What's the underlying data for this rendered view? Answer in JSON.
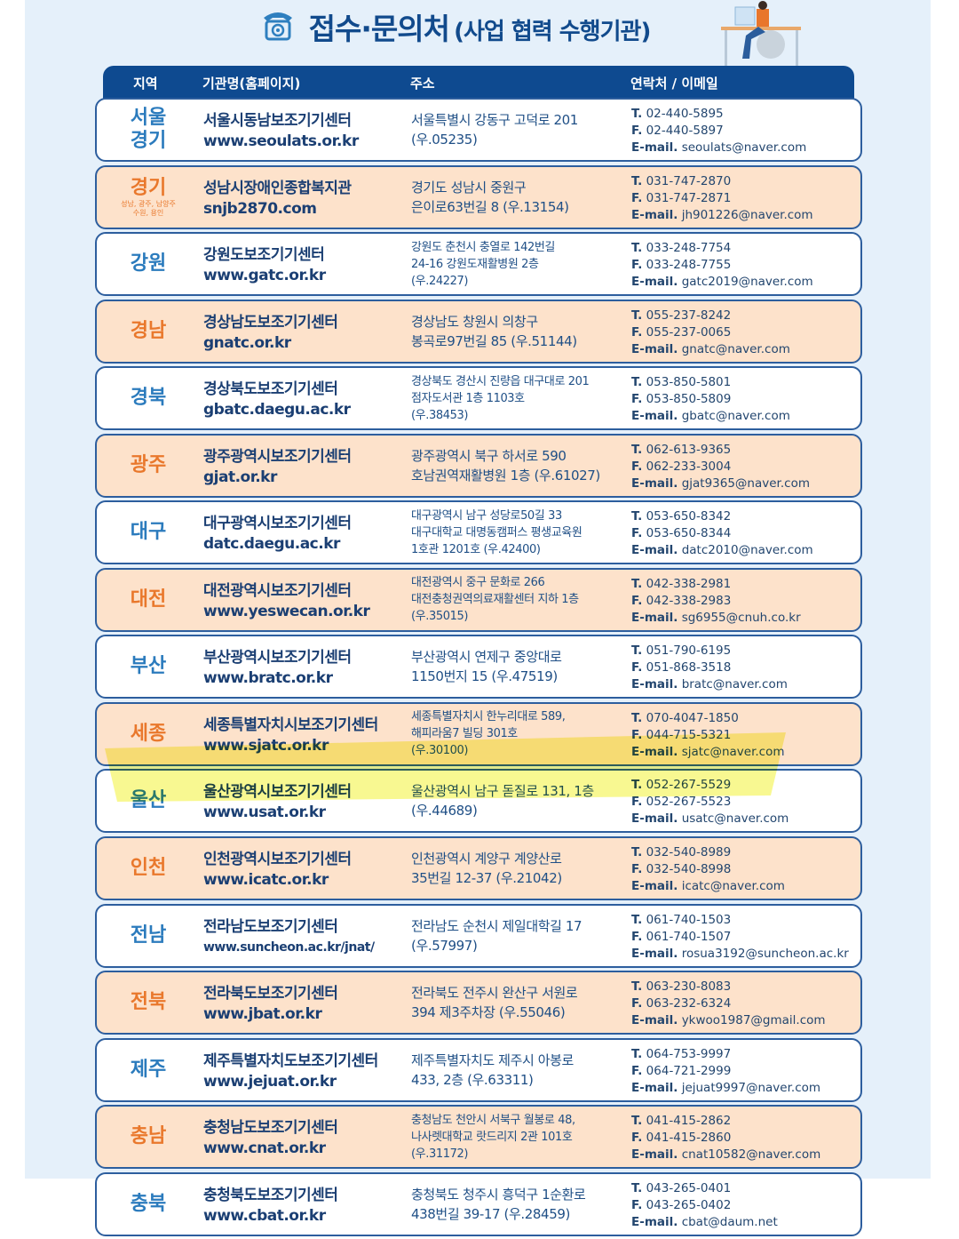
{
  "title": {
    "main": "접수·문의처",
    "sub": "(사업 협력 수행기관)",
    "icon": "telephone-icon"
  },
  "header": {
    "region": "지역",
    "org": "기관명(홈페이지)",
    "address": "주소",
    "contact": "연락처 / 이메일"
  },
  "colors": {
    "navy": "#0e4a90",
    "blue_text": "#2b7bbd",
    "orange_text": "#e9782c",
    "peach_row": "#fde2cb",
    "highlight": "#f2f23a"
  },
  "highlighted_region": "울산",
  "rows": [
    {
      "region": "서울\n경기",
      "note": "",
      "org": "서울시동남보조기기센터",
      "url": "www.seoulats.or.kr",
      "address": [
        "서울특별시 강동구 고덕로 201",
        "(우.05235)"
      ],
      "tel": "02-440-5895",
      "fax": "02-440-5897",
      "email": "seoulats@naver.com"
    },
    {
      "region": "경기",
      "note": "성남, 광주, 남양주\n수원, 용인",
      "org": "성남시장애인종합복지관",
      "url": "snjb2870.com",
      "address": [
        "경기도 성남시 중원구",
        "은이로63번길 8 (우.13154)"
      ],
      "tel": "031-747-2870",
      "fax": "031-747-2871",
      "email": "jh901226@naver.com"
    },
    {
      "region": "강원",
      "note": "",
      "org": "강원도보조기기센터",
      "url": "www.gatc.or.kr",
      "address": [
        "강원도 춘천시 충열로 142번길",
        "24-16 강원도재활병원 2층",
        "(우.24227)"
      ],
      "tel": "033-248-7754",
      "fax": "033-248-7755",
      "email": "gatc2019@naver.com"
    },
    {
      "region": "경남",
      "note": "",
      "org": "경상남도보조기기센터",
      "url": "gnatc.or.kr",
      "address": [
        "경상남도 창원시 의창구",
        "봉곡로97번길 85 (우.51144)"
      ],
      "tel": "055-237-8242",
      "fax": "055-237-0065",
      "email": "gnatc@naver.com"
    },
    {
      "region": "경북",
      "note": "",
      "org": "경상북도보조기기센터",
      "url": "gbatc.daegu.ac.kr",
      "address": [
        "경상북도 경산시 진량읍 대구대로 201",
        "점자도서관 1층 1103호",
        "(우.38453)"
      ],
      "tel": "053-850-5801",
      "fax": "053-850-5809",
      "email": "gbatc@naver.com"
    },
    {
      "region": "광주",
      "note": "",
      "org": "광주광역시보조기기센터",
      "url": "gjat.or.kr",
      "address": [
        "광주광역시 북구 하서로 590",
        "호남권역재활병원 1층 (우.61027)"
      ],
      "tel": "062-613-9365",
      "fax": "062-233-3004",
      "email": "gjat9365@naver.com"
    },
    {
      "region": "대구",
      "note": "",
      "org": "대구광역시보조기기센터",
      "url": "datc.daegu.ac.kr",
      "address": [
        "대구광역시 남구 성당로50길 33",
        "대구대학교 대명동캠퍼스 평생교육원",
        "1호관 1201호 (우.42400)"
      ],
      "tel": "053-650-8342",
      "fax": "053-650-8344",
      "email": "datc2010@naver.com"
    },
    {
      "region": "대전",
      "note": "",
      "org": "대전광역시보조기기센터",
      "url": "www.yeswecan.or.kr",
      "address": [
        "대전광역시 중구 문화로 266",
        "대전충청권역의료재활센터 지하 1층",
        "(우.35015)"
      ],
      "tel": "042-338-2981",
      "fax": "042-338-2983",
      "email": "sg6955@cnuh.co.kr"
    },
    {
      "region": "부산",
      "note": "",
      "org": "부산광역시보조기기센터",
      "url": "www.bratc.or.kr",
      "address": [
        "부산광역시 연제구 중앙대로",
        "1150번지 15 (우.47519)"
      ],
      "tel": "051-790-6195",
      "fax": "051-868-3518",
      "email": "bratc@naver.com"
    },
    {
      "region": "세종",
      "note": "",
      "org": "세종특별자치시보조기기센터",
      "url": "www.sjatc.or.kr",
      "address": [
        "세종특별자치시 한누리대로 589,",
        "해피라움7 빌딩 301호",
        "(우.30100)"
      ],
      "tel": "070-4047-1850",
      "fax": "044-715-5321",
      "email": "sjatc@naver.com"
    },
    {
      "region": "울산",
      "note": "",
      "org": "울산광역시보조기기센터",
      "url": "www.usat.or.kr",
      "address": [
        "울산광역시 남구 돋질로 131, 1층",
        "(우.44689)"
      ],
      "tel": "052-267-5529",
      "fax": "052-267-5523",
      "email": "usatc@naver.com"
    },
    {
      "region": "인천",
      "note": "",
      "org": "인천광역시보조기기센터",
      "url": "www.icatc.or.kr",
      "address": [
        "인천광역시 계양구 계양산로",
        "35번길 12-37 (우.21042)"
      ],
      "tel": "032-540-8989",
      "fax": "032-540-8998",
      "email": "icatc@naver.com"
    },
    {
      "region": "전남",
      "note": "",
      "org": "전라남도보조기기센터",
      "url": "www.suncheon.ac.kr/jnat/",
      "address": [
        "전라남도 순천시 제일대학길 17",
        "(우.57997)"
      ],
      "tel": "061-740-1503",
      "fax": "061-740-1507",
      "email": "rosua3192@suncheon.ac.kr"
    },
    {
      "region": "전북",
      "note": "",
      "org": "전라북도보조기기센터",
      "url": "www.jbat.or.kr",
      "address": [
        "전라북도 전주시 완산구 서원로",
        "394 제3주차장 (우.55046)"
      ],
      "tel": "063-230-8083",
      "fax": "063-232-6324",
      "email": "ykwoo1987@gmail.com"
    },
    {
      "region": "제주",
      "note": "",
      "org": "제주특별자치도보조기기센터",
      "url": "www.jejuat.or.kr",
      "address": [
        "제주특별자치도 제주시 아봉로",
        "433, 2층 (우.63311)"
      ],
      "tel": "064-753-9997",
      "fax": "064-721-2999",
      "email": "jejuat9997@naver.com"
    },
    {
      "region": "충남",
      "note": "",
      "org": "충청남도보조기기센터",
      "url": "www.cnat.or.kr",
      "address": [
        "충청남도 천안시 서북구 월봉로 48,",
        "나사렛대학교 랏드리지 2관 101호",
        "(우.31172)"
      ],
      "tel": "041-415-2862",
      "fax": "041-415-2860",
      "email": "cnat10582@naver.com"
    },
    {
      "region": "충북",
      "note": "",
      "org": "충청북도보조기기센터",
      "url": "www.cbat.or.kr",
      "address": [
        "충청북도 청주시 흥덕구 1순환로",
        "438번길 39-17 (우.28459)"
      ],
      "tel": "043-265-0401",
      "fax": "043-265-0402",
      "email": "cbat@daum.net"
    }
  ],
  "labels": {
    "tel": "T.",
    "fax": "F.",
    "email": "E-mail."
  }
}
